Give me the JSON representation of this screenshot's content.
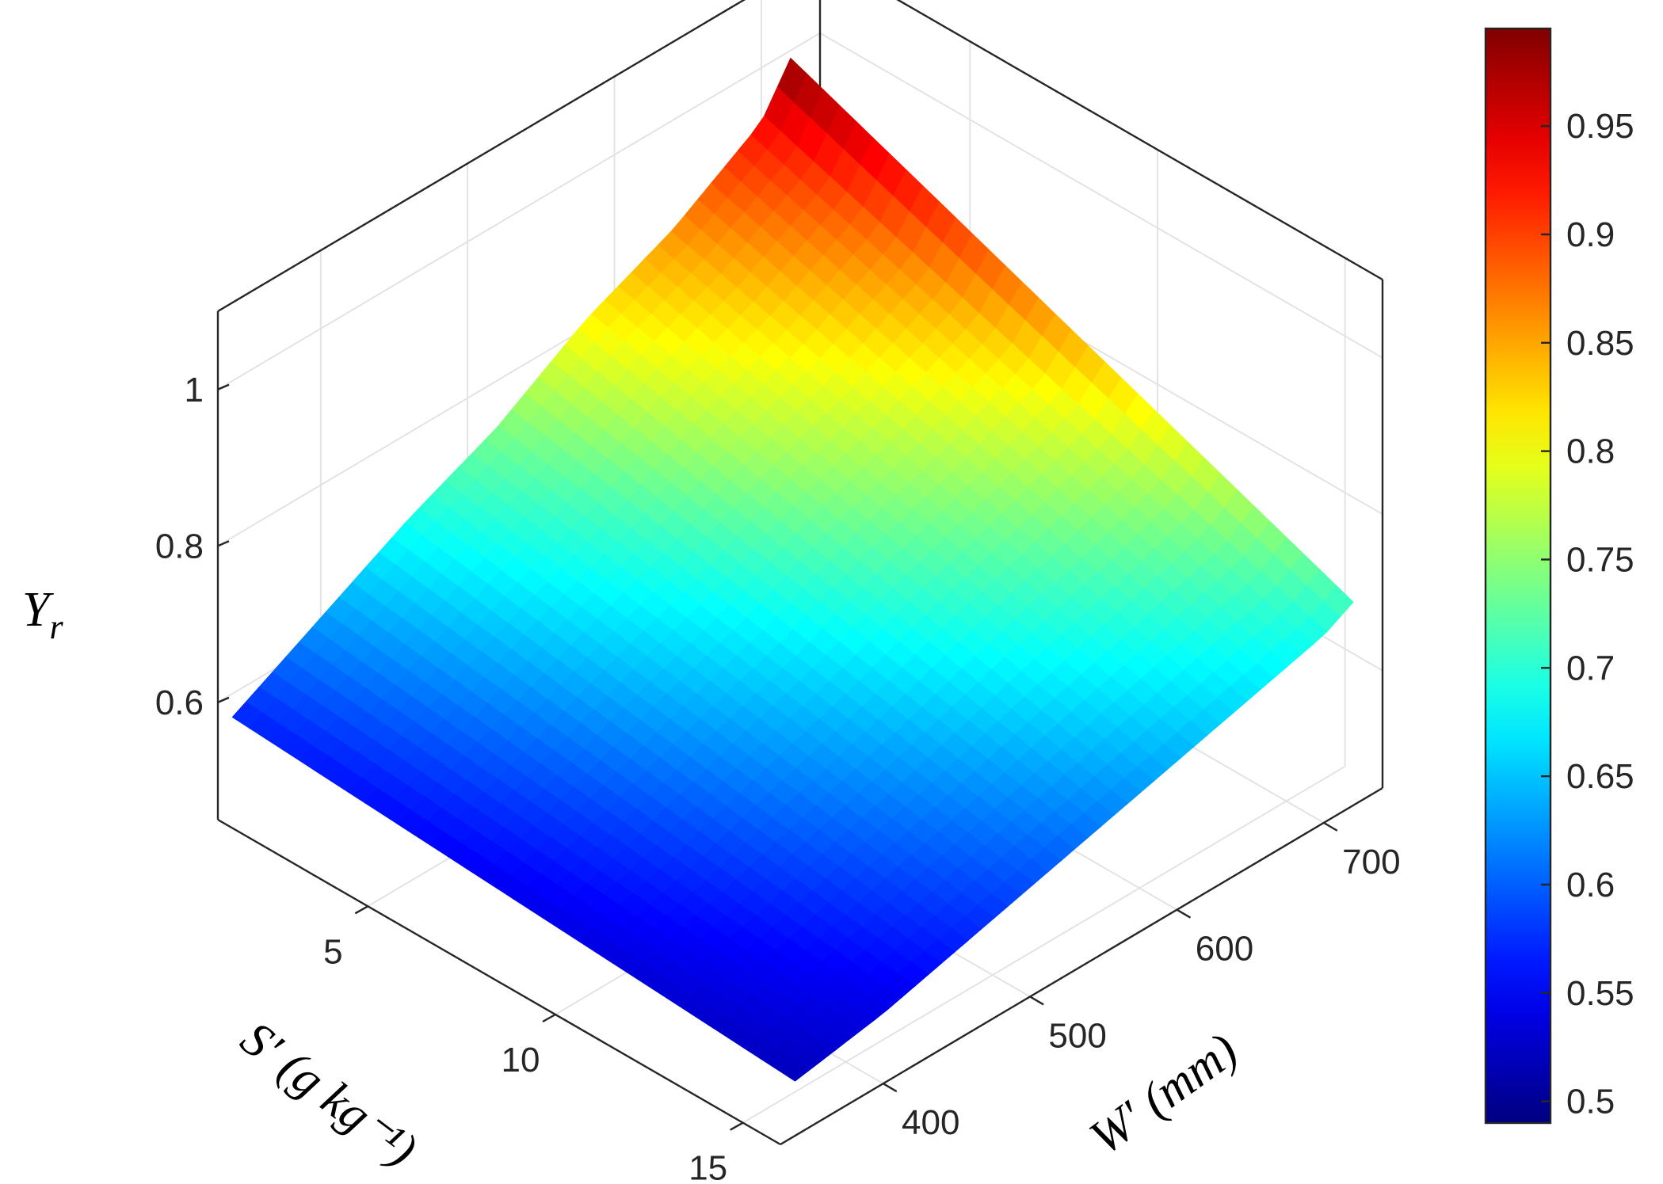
{
  "chart_data": {
    "type": "surface",
    "title": "",
    "x_axis": {
      "label": "S′ (g kg⁻¹)",
      "ticks": [
        "5",
        "10",
        "15"
      ],
      "range": [
        1,
        16
      ]
    },
    "y_axis": {
      "label": "W′ (mm)",
      "ticks": [
        "400",
        "500",
        "600",
        "700"
      ],
      "range": [
        330,
        740
      ]
    },
    "z_axis": {
      "label": "Y",
      "label_subscript": "r",
      "ticks": [
        "0.6",
        "0.8",
        "1"
      ],
      "range": [
        0.45,
        1.1
      ]
    },
    "colorbar": {
      "colormap": "jet",
      "range": [
        0.49,
        0.995
      ],
      "ticks": [
        "0.5",
        "0.55",
        "0.6",
        "0.65",
        "0.7",
        "0.75",
        "0.8",
        "0.85",
        "0.9",
        "0.95"
      ]
    },
    "grid": true,
    "surface": {
      "S": [
        1,
        16
      ],
      "W": [
        340,
        400,
        460,
        520,
        580,
        640,
        700,
        720
      ],
      "Yr": [
        [
          0.57,
          0.52
        ],
        [
          0.63,
          0.54
        ],
        [
          0.69,
          0.57
        ],
        [
          0.74,
          0.6
        ],
        [
          0.81,
          0.63
        ],
        [
          0.86,
          0.66
        ],
        [
          0.93,
          0.69
        ],
        [
          0.99,
          0.71
        ]
      ]
    }
  }
}
